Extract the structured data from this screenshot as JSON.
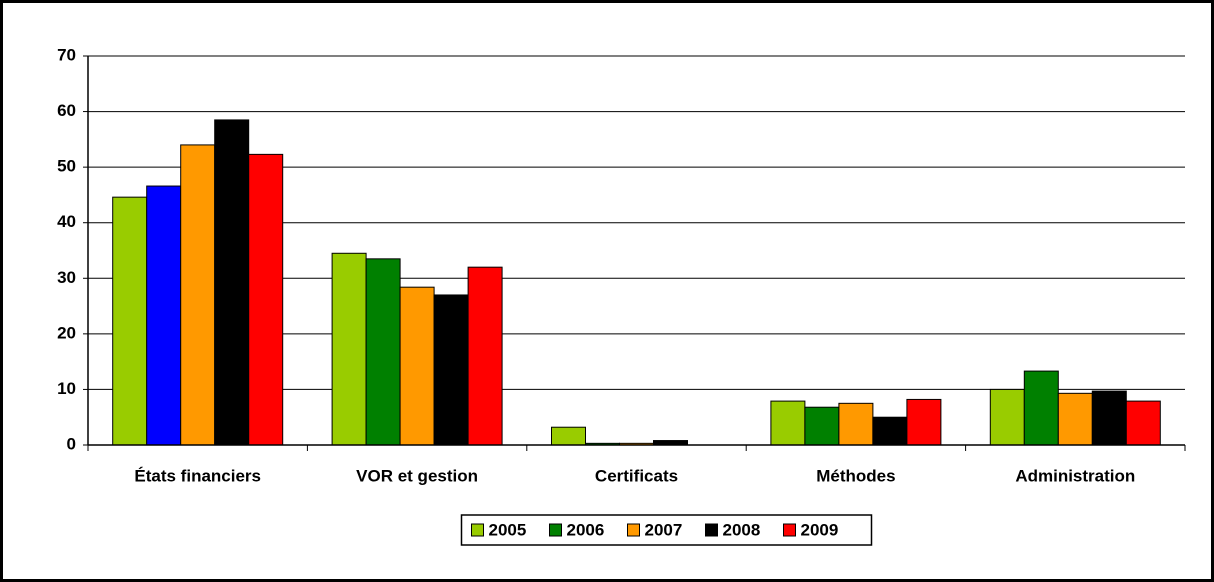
{
  "chart_data": {
    "type": "bar",
    "categories": [
      "États financiers",
      "VOR et gestion",
      "Certificats",
      "Méthodes",
      "Administration"
    ],
    "series": [
      {
        "name": "2005",
        "color": "#99cc00",
        "values": [
          44.6,
          34.5,
          3.2,
          7.9,
          10
        ]
      },
      {
        "name": "2006",
        "color": "#008000",
        "colors": [
          "#0000ff",
          "#008000",
          "#008000",
          "#008000",
          "#008000"
        ],
        "values": [
          46.6,
          33.5,
          0.3,
          6.8,
          13.3
        ]
      },
      {
        "name": "2007",
        "color": "#ff9900",
        "values": [
          54,
          28.4,
          0.3,
          7.5,
          9.3
        ]
      },
      {
        "name": "2008",
        "color": "#000000",
        "values": [
          58.5,
          27,
          0.8,
          5,
          9.7
        ]
      },
      {
        "name": "2009",
        "color": "#ff0000",
        "values": [
          52.3,
          32,
          0,
          8.2,
          7.9
        ]
      }
    ],
    "ylim": [
      0,
      70
    ],
    "yticks": [
      0,
      10,
      20,
      30,
      40,
      50,
      60,
      70
    ],
    "grid": true,
    "legend": "bottom"
  }
}
